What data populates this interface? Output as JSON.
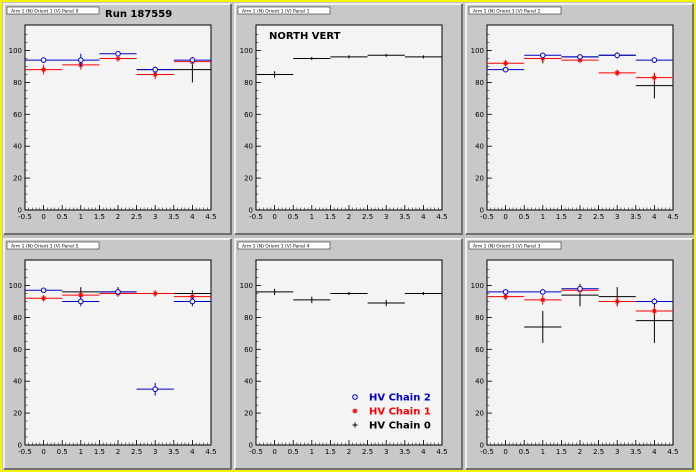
{
  "header": {
    "run_label": "Run 187559"
  },
  "legend": {
    "entries": [
      {
        "label": "HV Chain 2",
        "color": "#0000cc",
        "marker": "open-circle"
      },
      {
        "label": "HV Chain 1",
        "color": "#ff0000",
        "marker": "star"
      },
      {
        "label": "HV Chain 0",
        "color": "#000000",
        "marker": "cross"
      }
    ]
  },
  "chart_data": [
    {
      "type": "scatter",
      "title": "Arm 1 (N) Orient 1 (V) Panel 0",
      "annotation": "Run 187559",
      "xlim": [
        -0.5,
        4.5
      ],
      "ylim": [
        0,
        116
      ],
      "xticks": [
        "-0.5",
        "0",
        "0.5",
        "1",
        "1.5",
        "2",
        "2.5",
        "3",
        "3.5",
        "4",
        "4.5"
      ],
      "yticks": [
        "0",
        "20",
        "40",
        "60",
        "80",
        "100"
      ],
      "series": [
        {
          "name": "HV Chain 2",
          "color": "#0000cc",
          "marker": "circle",
          "points": [
            {
              "x": 0,
              "y": 94
            },
            {
              "x": 1,
              "y": 94
            },
            {
              "x": 2,
              "y": 98
            },
            {
              "x": 3,
              "y": 88
            },
            {
              "x": 4,
              "y": 94
            }
          ],
          "xerr": [
            [
              -0.5,
              0.5
            ],
            [
              0.5,
              1.5
            ],
            [
              1.5,
              2.5
            ],
            [
              2.5,
              3.5
            ],
            [
              3.5,
              4.5
            ]
          ],
          "yerr": [
            1,
            4,
            1,
            2,
            1
          ]
        },
        {
          "name": "HV Chain 1",
          "color": "#ff0000",
          "marker": "star",
          "points": [
            {
              "x": 0,
              "y": 88
            },
            {
              "x": 1,
              "y": 91
            },
            {
              "x": 2,
              "y": 95
            },
            {
              "x": 3,
              "y": 85
            },
            {
              "x": 4,
              "y": 93
            }
          ],
          "xerr": [
            [
              -0.5,
              0.5
            ],
            [
              0.5,
              1.5
            ],
            [
              1.5,
              2.5
            ],
            [
              2.5,
              3.5
            ],
            [
              3.5,
              4.5
            ]
          ],
          "yerr": [
            3,
            3,
            2,
            3,
            2
          ]
        },
        {
          "name": "HV Chain 0",
          "color": "#000000",
          "marker": "cross",
          "points": [
            {
              "x": 4,
              "y": 88
            }
          ],
          "xerr": [
            [
              2.5,
              4.5
            ]
          ],
          "yerr": [
            8
          ]
        }
      ]
    },
    {
      "type": "scatter",
      "title": "Arm 1 (N) Orient 1 (V) Panel 1",
      "annotation": "NORTH VERT",
      "xlim": [
        -0.5,
        4.5
      ],
      "ylim": [
        0,
        116
      ],
      "xticks": [
        "-0.5",
        "0",
        "0.5",
        "1",
        "1.5",
        "2",
        "2.5",
        "3",
        "3.5",
        "4",
        "4.5"
      ],
      "yticks": [
        "0",
        "20",
        "40",
        "60",
        "80",
        "100"
      ],
      "series": [
        {
          "name": "HV Chain 0",
          "color": "#000000",
          "marker": "cross",
          "points": [
            {
              "x": 0,
              "y": 85
            },
            {
              "x": 1,
              "y": 95
            },
            {
              "x": 2,
              "y": 96
            },
            {
              "x": 3,
              "y": 97
            },
            {
              "x": 4,
              "y": 96
            }
          ],
          "xerr": [
            [
              -0.5,
              0.5
            ],
            [
              0.5,
              1.5
            ],
            [
              1.5,
              2.5
            ],
            [
              2.5,
              3.5
            ],
            [
              3.5,
              4.5
            ]
          ],
          "yerr": [
            2,
            1,
            1,
            1,
            1
          ]
        }
      ]
    },
    {
      "type": "scatter",
      "title": "Arm 1 (N) Orient 1 (V) Panel 2",
      "annotation": "",
      "xlim": [
        -0.5,
        4.5
      ],
      "ylim": [
        0,
        116
      ],
      "xticks": [
        "-0.5",
        "0",
        "0.5",
        "1",
        "1.5",
        "2",
        "2.5",
        "3",
        "3.5",
        "4",
        "4.5"
      ],
      "yticks": [
        "0",
        "20",
        "40",
        "60",
        "80",
        "100"
      ],
      "series": [
        {
          "name": "HV Chain 2",
          "color": "#0000cc",
          "marker": "circle",
          "points": [
            {
              "x": 0,
              "y": 88
            },
            {
              "x": 1,
              "y": 97
            },
            {
              "x": 2,
              "y": 96
            },
            {
              "x": 3,
              "y": 97
            },
            {
              "x": 4,
              "y": 94
            }
          ],
          "xerr": [
            [
              -0.5,
              0.5
            ],
            [
              0.5,
              1.5
            ],
            [
              1.5,
              2.5
            ],
            [
              2.5,
              3.5
            ],
            [
              3.5,
              4.5
            ]
          ],
          "yerr": [
            1,
            1,
            1,
            1,
            1
          ]
        },
        {
          "name": "HV Chain 1",
          "color": "#ff0000",
          "marker": "star",
          "points": [
            {
              "x": 0,
              "y": 92
            },
            {
              "x": 1,
              "y": 95
            },
            {
              "x": 2,
              "y": 94
            },
            {
              "x": 3,
              "y": 86
            },
            {
              "x": 4,
              "y": 83
            }
          ],
          "xerr": [
            [
              -0.5,
              0.5
            ],
            [
              0.5,
              1.5
            ],
            [
              1.5,
              2.5
            ],
            [
              2.5,
              3.5
            ],
            [
              3.5,
              4.5
            ]
          ],
          "yerr": [
            2,
            2,
            2,
            2,
            3
          ]
        },
        {
          "name": "HV Chain 0",
          "color": "#000000",
          "marker": "cross",
          "points": [
            {
              "x": 1,
              "y": 95
            },
            {
              "x": 2,
              "y": 96
            },
            {
              "x": 3,
              "y": 97
            },
            {
              "x": 4,
              "y": 78
            }
          ],
          "xerr": [
            [
              0.5,
              1.5
            ],
            [
              1.5,
              2.5
            ],
            [
              2.5,
              3.5
            ],
            [
              3.5,
              4.5
            ]
          ],
          "yerr": [
            3,
            1,
            2,
            8
          ]
        }
      ]
    },
    {
      "type": "scatter",
      "title": "Arm 1 (N) Orient 1 (V) Panel 5",
      "annotation": "",
      "xlim": [
        -0.5,
        4.5
      ],
      "ylim": [
        0,
        116
      ],
      "xticks": [
        "-0.5",
        "0",
        "0.5",
        "1",
        "1.5",
        "2",
        "2.5",
        "3",
        "3.5",
        "4",
        "4.5"
      ],
      "yticks": [
        "0",
        "20",
        "40",
        "60",
        "80",
        "100"
      ],
      "series": [
        {
          "name": "HV Chain 2",
          "color": "#0000cc",
          "marker": "circle",
          "points": [
            {
              "x": 0,
              "y": 97
            },
            {
              "x": 1,
              "y": 90
            },
            {
              "x": 2,
              "y": 96
            },
            {
              "x": 3,
              "y": 35
            },
            {
              "x": 4,
              "y": 90
            }
          ],
          "xerr": [
            [
              -0.5,
              0.5
            ],
            [
              0.5,
              1.5
            ],
            [
              1.5,
              2.5
            ],
            [
              2.5,
              3.5
            ],
            [
              3.5,
              4.5
            ]
          ],
          "yerr": [
            1,
            3,
            2,
            4,
            3
          ]
        },
        {
          "name": "HV Chain 1",
          "color": "#ff0000",
          "marker": "star",
          "points": [
            {
              "x": 0,
              "y": 92
            },
            {
              "x": 1,
              "y": 94
            },
            {
              "x": 2,
              "y": 95
            },
            {
              "x": 3,
              "y": 95
            },
            {
              "x": 4,
              "y": 93
            }
          ],
          "xerr": [
            [
              -0.5,
              0.5
            ],
            [
              0.5,
              1.5
            ],
            [
              1.5,
              2.5
            ],
            [
              2.5,
              3.5
            ],
            [
              3.5,
              4.5
            ]
          ],
          "yerr": [
            2,
            2,
            2,
            2,
            2
          ]
        },
        {
          "name": "HV Chain 0",
          "color": "#000000",
          "marker": "cross",
          "points": [
            {
              "x": 1,
              "y": 96
            },
            {
              "x": 2,
              "y": 96
            },
            {
              "x": 4,
              "y": 95
            }
          ],
          "xerr": [
            [
              0.5,
              1.5
            ],
            [
              1.5,
              2.5
            ],
            [
              3.5,
              4.5
            ]
          ],
          "yerr": [
            3,
            3,
            2
          ]
        }
      ]
    },
    {
      "type": "scatter",
      "title": "Arm 1 (N) Orient 1 (V) Panel 4",
      "annotation": "",
      "xlim": [
        -0.5,
        4.5
      ],
      "ylim": [
        0,
        116
      ],
      "xticks": [
        "-0.5",
        "0",
        "0.5",
        "1",
        "1.5",
        "2",
        "2.5",
        "3",
        "3.5",
        "4",
        "4.5"
      ],
      "yticks": [
        "0",
        "20",
        "40",
        "60",
        "80",
        "100"
      ],
      "show_legend": true,
      "series": [
        {
          "name": "HV Chain 0",
          "color": "#000000",
          "marker": "cross",
          "points": [
            {
              "x": 0,
              "y": 96
            },
            {
              "x": 1,
              "y": 91
            },
            {
              "x": 2,
              "y": 95
            },
            {
              "x": 3,
              "y": 89
            },
            {
              "x": 4,
              "y": 95
            }
          ],
          "xerr": [
            [
              -0.5,
              0.5
            ],
            [
              0.5,
              1.5
            ],
            [
              1.5,
              2.5
            ],
            [
              2.5,
              3.5
            ],
            [
              3.5,
              4.5
            ]
          ],
          "yerr": [
            2,
            2,
            1,
            2,
            1
          ]
        }
      ]
    },
    {
      "type": "scatter",
      "title": "Arm 1 (N) Orient 1 (V) Panel 3",
      "annotation": "",
      "xlim": [
        -0.5,
        4.5
      ],
      "ylim": [
        0,
        116
      ],
      "xticks": [
        "-0.5",
        "0",
        "0.5",
        "1",
        "1.5",
        "2",
        "2.5",
        "3",
        "3.5",
        "4",
        "4.5"
      ],
      "yticks": [
        "0",
        "20",
        "40",
        "60",
        "80",
        "100"
      ],
      "series": [
        {
          "name": "HV Chain 2",
          "color": "#0000cc",
          "marker": "circle",
          "points": [
            {
              "x": 0,
              "y": 96
            },
            {
              "x": 1,
              "y": 96
            },
            {
              "x": 2,
              "y": 98
            },
            {
              "x": 4,
              "y": 90
            }
          ],
          "xerr": [
            [
              -0.5,
              0.5
            ],
            [
              0.5,
              1.5
            ],
            [
              1.5,
              2.5
            ],
            [
              3.5,
              4.5
            ]
          ],
          "yerr": [
            1,
            1,
            1,
            2
          ]
        },
        {
          "name": "HV Chain 1",
          "color": "#ff0000",
          "marker": "star",
          "points": [
            {
              "x": 0,
              "y": 93
            },
            {
              "x": 1,
              "y": 91
            },
            {
              "x": 2,
              "y": 97
            },
            {
              "x": 3,
              "y": 90
            },
            {
              "x": 4,
              "y": 84
            }
          ],
          "xerr": [
            [
              -0.5,
              0.5
            ],
            [
              0.5,
              1.5
            ],
            [
              1.5,
              2.5
            ],
            [
              2.5,
              3.5
            ],
            [
              3.5,
              4.5
            ]
          ],
          "yerr": [
            2,
            3,
            2,
            3,
            3
          ]
        },
        {
          "name": "HV Chain 0",
          "color": "#000000",
          "marker": "cross",
          "points": [
            {
              "x": 1,
              "y": 74
            },
            {
              "x": 2,
              "y": 94
            },
            {
              "x": 3,
              "y": 93
            },
            {
              "x": 4,
              "y": 78
            }
          ],
          "xerr": [
            [
              0.5,
              1.5
            ],
            [
              1.5,
              2.5
            ],
            [
              2.5,
              3.5
            ],
            [
              3.5,
              4.5
            ]
          ],
          "yerr": [
            10,
            7,
            6,
            14
          ]
        }
      ]
    }
  ]
}
